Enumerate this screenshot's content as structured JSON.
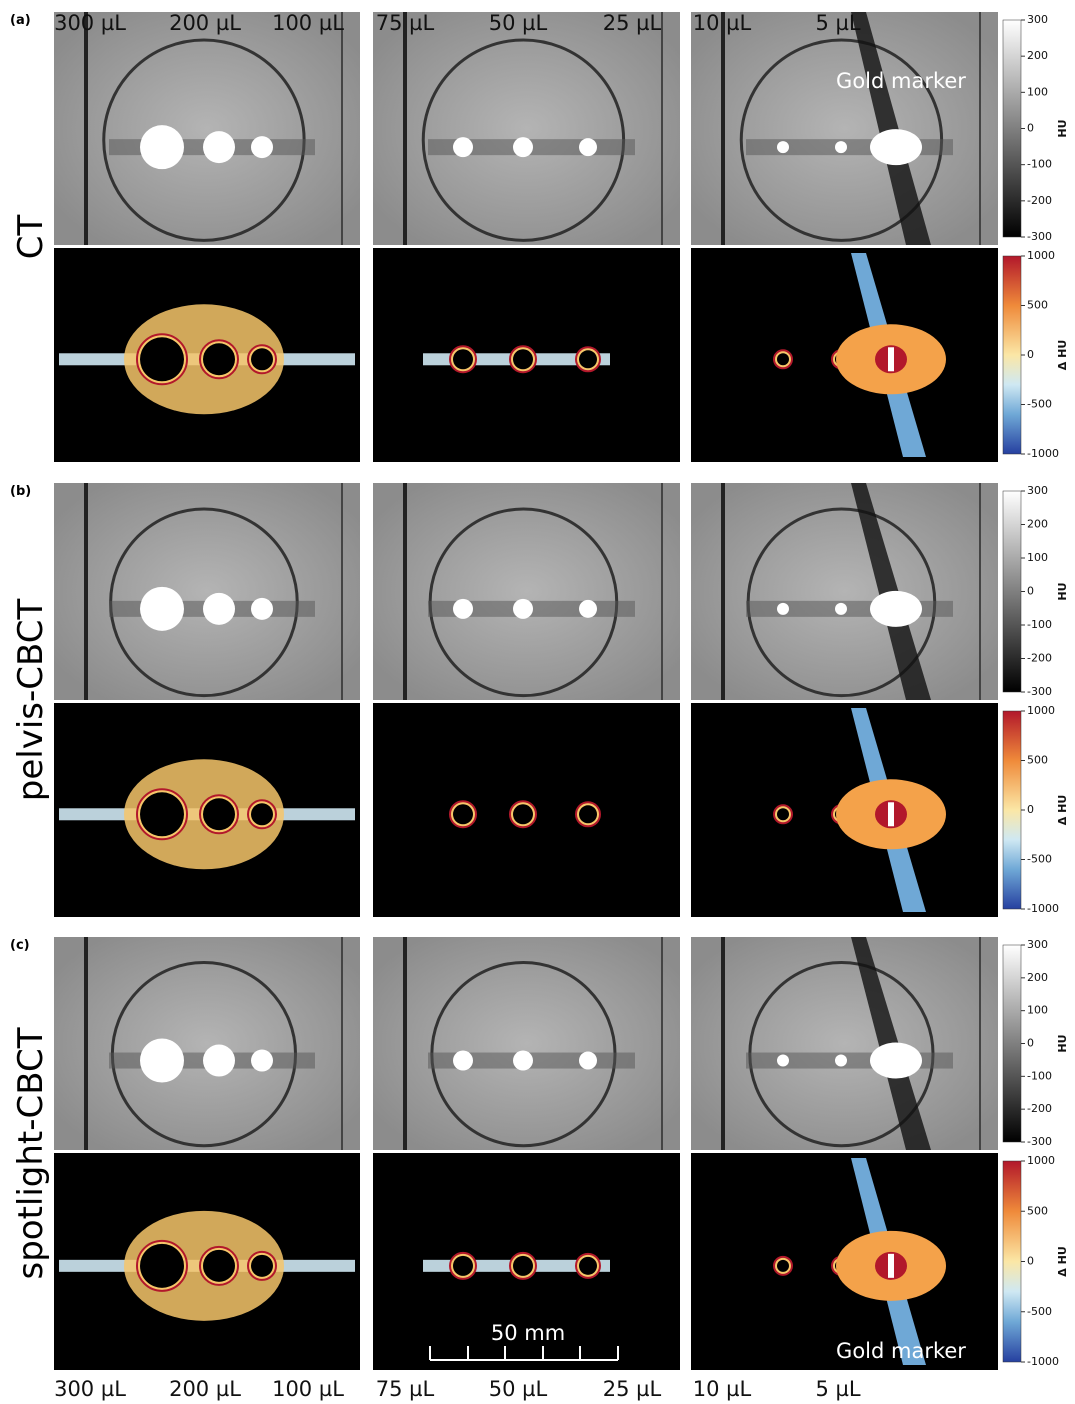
{
  "panels": [
    {
      "letter": "(a)",
      "label": "CT"
    },
    {
      "letter": "(b)",
      "label": "pelvis-CBCT"
    },
    {
      "letter": "(c)",
      "label": "spotlight-CBCT"
    }
  ],
  "volumes_top": [
    "300 µL",
    "200 µL",
    "100 µL",
    "75 µL",
    "50 µL",
    "25 µL",
    "10 µL",
    "5 µL"
  ],
  "volumes_bottom": [
    "300 µL",
    "200 µL",
    "100 µL",
    "75 µL",
    "50 µL",
    "25 µL",
    "10 µL",
    "5 µL"
  ],
  "annotations": {
    "gold_marker_top": "Gold marker",
    "gold_marker_bottom": "Gold marker",
    "scale_bar": "50 mm"
  },
  "colorbars": {
    "hu": {
      "label": "HU",
      "ticks": [
        300,
        200,
        100,
        0,
        -100,
        -200,
        -300
      ]
    },
    "delta_hu": {
      "label": "Δ HU",
      "ticks": [
        1000,
        500,
        0,
        -500,
        -1000
      ]
    }
  }
}
